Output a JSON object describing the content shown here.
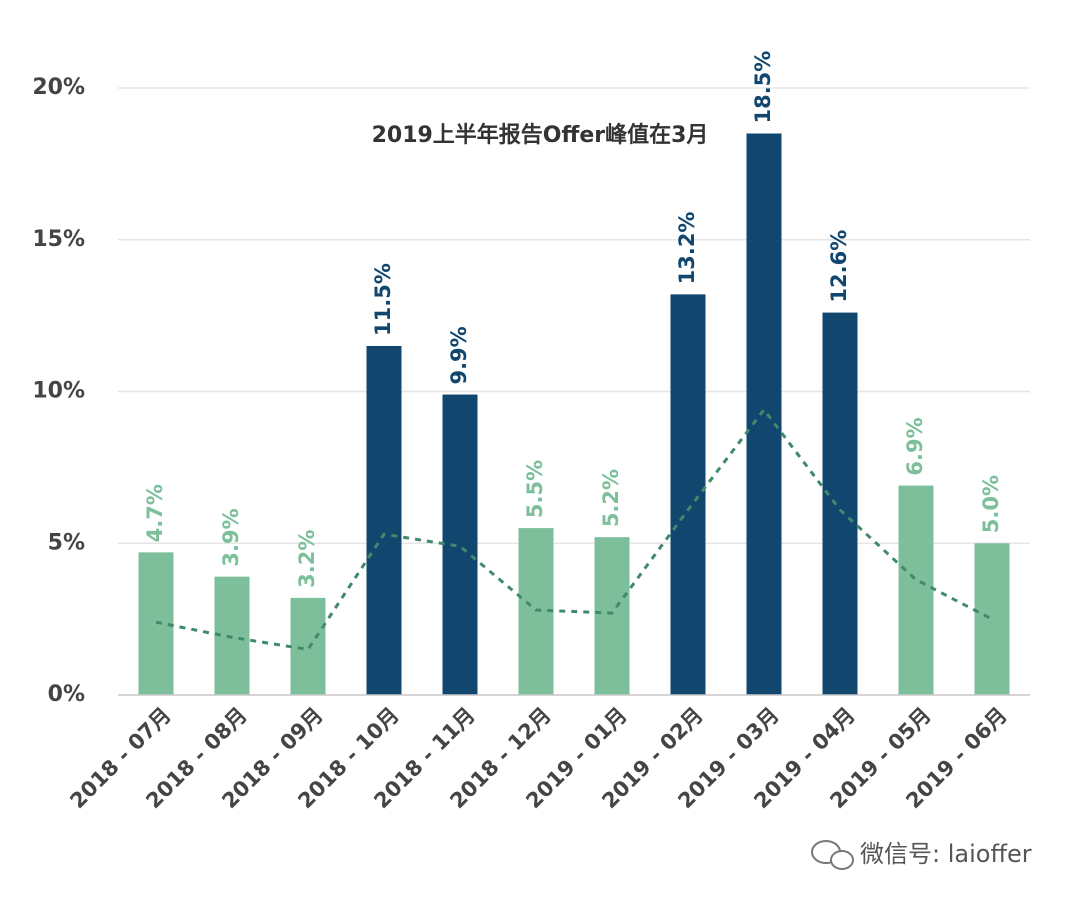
{
  "chart_data": {
    "type": "bar",
    "annotation": "2019上半年报告Offer峰值在3月",
    "watermark": "微信号: laioffer",
    "categories": [
      "2018 - 07月",
      "2018 - 08月",
      "2018 - 09月",
      "2018 - 10月",
      "2018 - 11月",
      "2018 - 12月",
      "2019 - 01月",
      "2019 - 02月",
      "2019 - 03月",
      "2019 - 04月",
      "2019 - 05月",
      "2019 - 06月"
    ],
    "values": [
      4.7,
      3.9,
      3.2,
      11.5,
      9.9,
      5.5,
      5.2,
      13.2,
      18.5,
      12.6,
      6.9,
      5.0
    ],
    "value_labels": [
      "4.7%",
      "3.9%",
      "3.2%",
      "11.5%",
      "9.9%",
      "5.5%",
      "5.2%",
      "13.2%",
      "18.5%",
      "12.6%",
      "6.9%",
      "5.0%"
    ],
    "colors": [
      "#7dbf9a",
      "#7dbf9a",
      "#7dbf9a",
      "#11466e",
      "#11466e",
      "#7dbf9a",
      "#7dbf9a",
      "#11466e",
      "#11466e",
      "#11466e",
      "#7dbf9a",
      "#7dbf9a"
    ],
    "trend": {
      "color": "#3f8a6c",
      "values": [
        2.4,
        1.9,
        1.5,
        5.3,
        4.9,
        2.8,
        2.7,
        6.1,
        9.4,
        6.1,
        3.8,
        2.5
      ]
    },
    "ylim": [
      0,
      20
    ],
    "yticks": [
      {
        "value": 0,
        "label": "0%"
      },
      {
        "value": 5,
        "label": "5%"
      },
      {
        "value": 10,
        "label": "10%"
      },
      {
        "value": 15,
        "label": "15%"
      },
      {
        "value": 20,
        "label": "20%"
      }
    ],
    "grid": true
  }
}
